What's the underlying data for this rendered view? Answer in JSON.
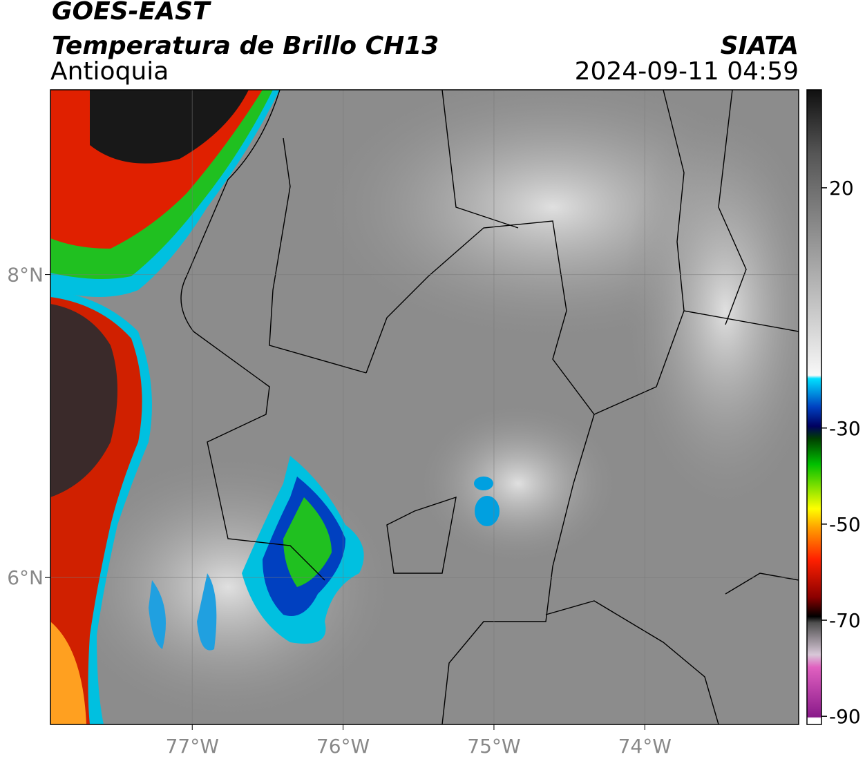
{
  "header": {
    "title": "GOES-EAST",
    "subtitle": "Temperatura de Brillo CH13",
    "region": "Antioquia",
    "agency": "SIATA",
    "datetime": "2024-09-11 04:59"
  },
  "map": {
    "xlim": [
      -77.94,
      -72.98
    ],
    "ylim": [
      5.03,
      9.22
    ],
    "xticks": [
      {
        "value": -77,
        "label": "77°W"
      },
      {
        "value": -76,
        "label": "76°W"
      },
      {
        "value": -75,
        "label": "75°W"
      },
      {
        "value": -74,
        "label": "74°W"
      }
    ],
    "yticks": [
      {
        "value": 8,
        "label": "8°N"
      },
      {
        "value": 6,
        "label": "6°N"
      }
    ]
  },
  "colorbar": {
    "lim": [
      -91.7,
      40.4
    ],
    "ticks": [
      20,
      -30,
      -50,
      -70,
      -90
    ]
  }
}
